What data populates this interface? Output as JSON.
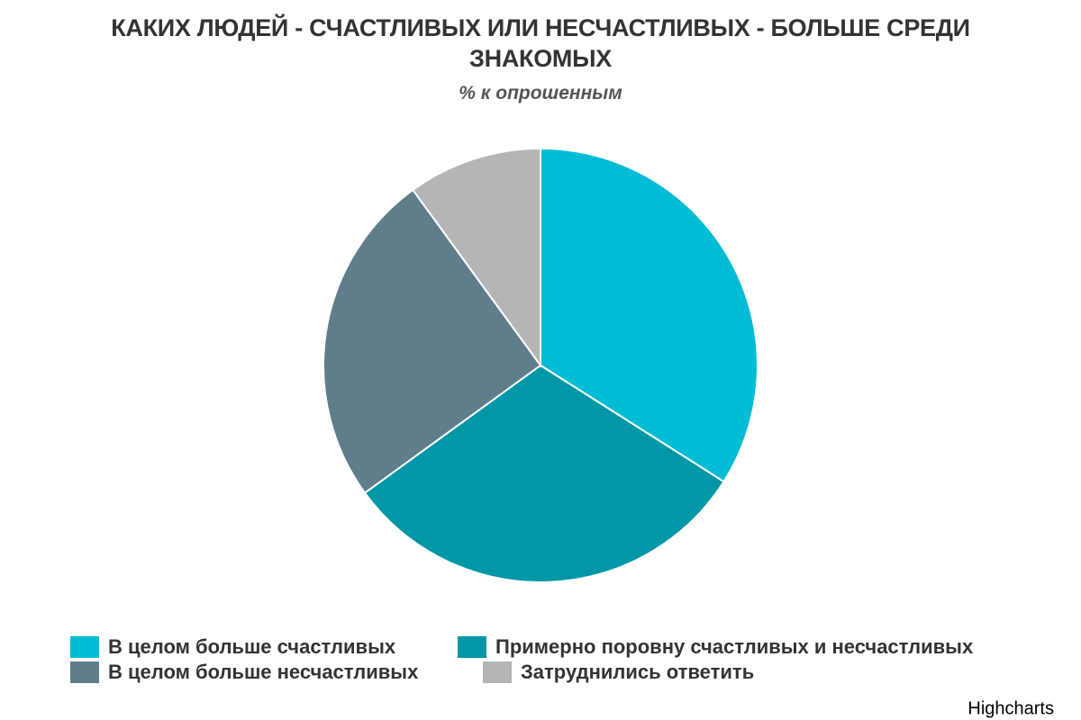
{
  "chart_data": {
    "type": "pie",
    "title": "КАКИХ ЛЮДЕЙ - СЧАСТЛИВЫХ ИЛИ НЕСЧАСТЛИВЫХ - БОЛЬШЕ СРЕДИ ЗНАКОМЫХ",
    "subtitle": "% к опрошенным",
    "categories": [
      "В целом больше счастливых",
      "Примерно поровну счастливых и несчастливых",
      "В целом больше несчастливых",
      "Затруднились ответить"
    ],
    "values": [
      34,
      31,
      25,
      10
    ],
    "colors": [
      "#00bcd4",
      "#0097a7",
      "#607d8b",
      "#b5b5b5"
    ],
    "credits": "Highcharts"
  }
}
